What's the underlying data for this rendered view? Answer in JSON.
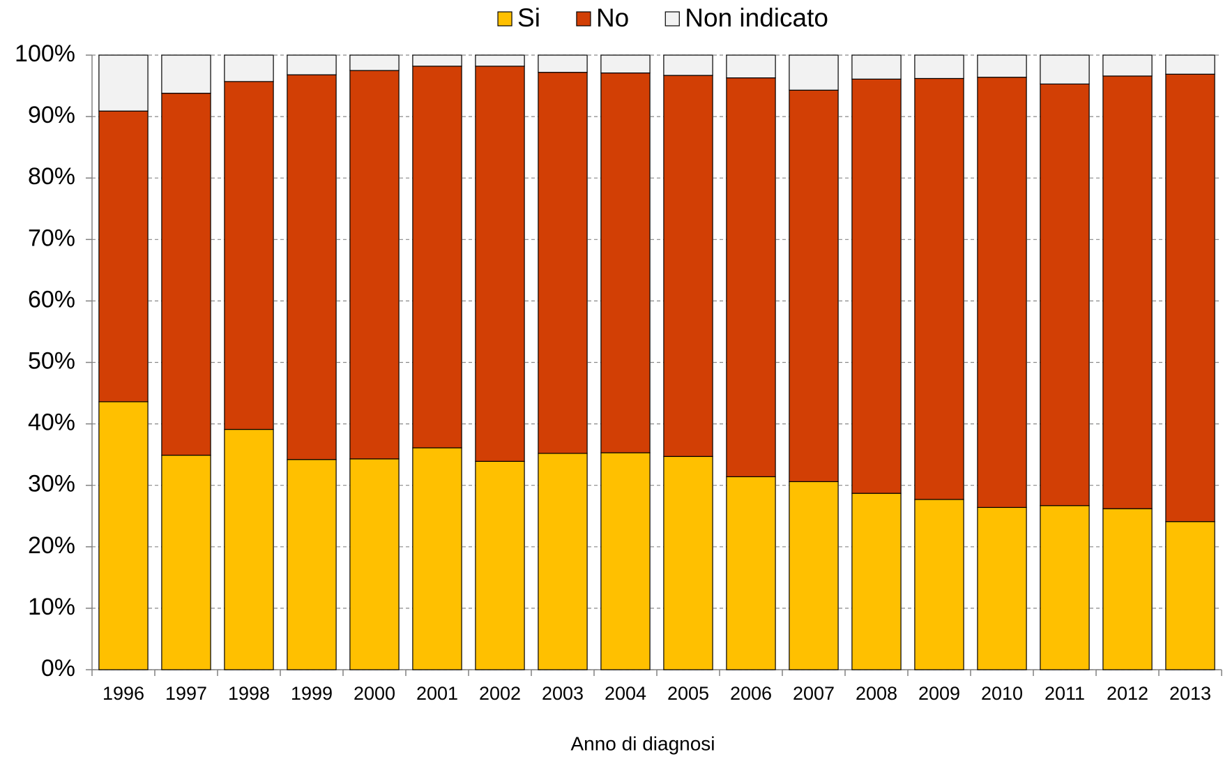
{
  "chart_data": {
    "type": "stacked_bar",
    "x_label": "Anno di diagnosi",
    "categories": [
      "1996",
      "1997",
      "1998",
      "1999",
      "2000",
      "2001",
      "2002",
      "2003",
      "2004",
      "2005",
      "2006",
      "2007",
      "2008",
      "2009",
      "2010",
      "2011",
      "2012",
      "2013"
    ],
    "series": [
      {
        "name": "Si",
        "color": "#ffc000",
        "values": [
          43.6,
          34.9,
          39.1,
          34.2,
          34.3,
          36.1,
          33.9,
          35.2,
          35.3,
          34.7,
          31.4,
          30.6,
          28.7,
          27.7,
          26.4,
          26.7,
          26.2,
          24.1
        ]
      },
      {
        "name": "No",
        "color": "#d23f05",
        "values": [
          47.3,
          58.9,
          56.6,
          62.6,
          63.2,
          62.1,
          64.3,
          62.0,
          61.8,
          62.0,
          64.9,
          63.7,
          67.4,
          68.5,
          70.0,
          68.6,
          70.4,
          72.8
        ]
      },
      {
        "name": "Non indicato",
        "color": "#f2f2f2",
        "values": [
          9.1,
          6.2,
          4.3,
          3.2,
          2.5,
          1.8,
          1.8,
          2.8,
          2.9,
          3.3,
          3.7,
          5.7,
          3.9,
          3.8,
          3.6,
          4.7,
          3.4,
          3.1
        ]
      }
    ],
    "ylim": [
      0,
      100
    ],
    "yticks": [
      {
        "value": 0,
        "label": "0%"
      },
      {
        "value": 10,
        "label": "10%"
      },
      {
        "value": 20,
        "label": "20%"
      },
      {
        "value": 30,
        "label": "30%"
      },
      {
        "value": 40,
        "label": "40%"
      },
      {
        "value": 50,
        "label": "50%"
      },
      {
        "value": 60,
        "label": "60%"
      },
      {
        "value": 70,
        "label": "70%"
      },
      {
        "value": 80,
        "label": "80%"
      },
      {
        "value": 90,
        "label": "90%"
      },
      {
        "value": 100,
        "label": "100%"
      }
    ],
    "grid": true,
    "legend": "top"
  }
}
